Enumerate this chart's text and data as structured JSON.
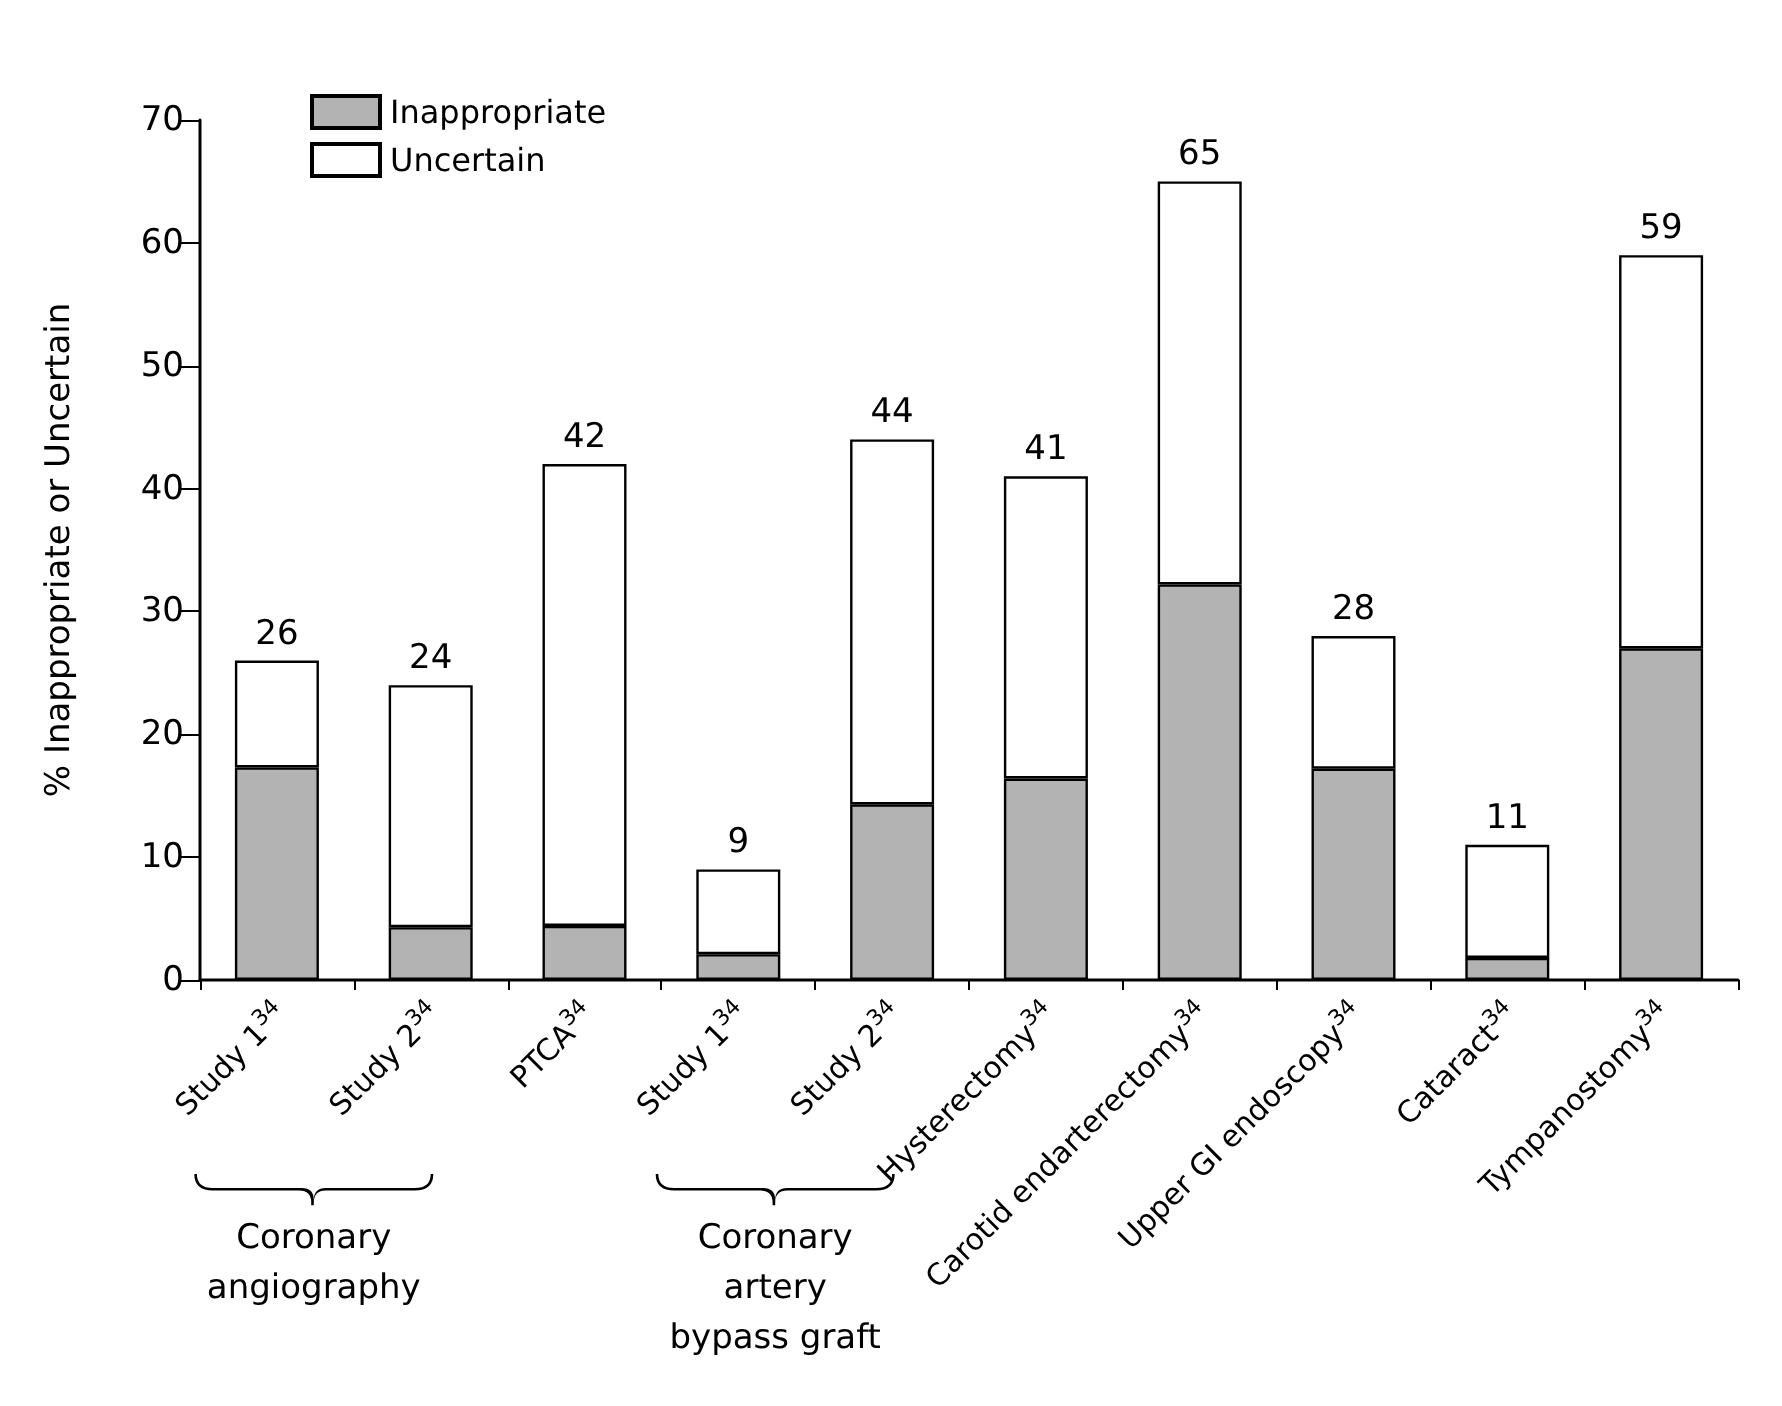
{
  "chart_data": {
    "type": "bar",
    "stacked": true,
    "ylabel": "% Inappropriate or Uncertain",
    "categories": [
      "Study 1$^{34}$",
      "Study 2$^{34}$",
      "PTCA$^{34}$",
      "Study 1$^{34}$",
      "Study 2$^{34}$",
      "Hysterectomy$^{34}$",
      "Carotid endarterectomy$^{34}$",
      "Upper GI endoscopy$^{34}$",
      "Cataract$^{34}$",
      "Tympanostomy$^{34}$"
    ],
    "series": [
      {
        "name": "Inappropriate",
        "color": "#b3b3b3",
        "values": [
          17.3,
          4.3,
          4.4,
          2.1,
          14.3,
          16.4,
          32.2,
          17.2,
          1.8,
          27
        ]
      },
      {
        "name": "Uncertain",
        "color": "#ffffff",
        "values": [
          8.7,
          19.7,
          37.6,
          6.9,
          29.7,
          24.6,
          32.8,
          10.8,
          9.2,
          32
        ]
      }
    ],
    "totals": [
      "26",
      "24",
      "42",
      "9",
      "44",
      "41",
      "65",
      "28",
      "11",
      "59"
    ],
    "ylim": [
      0,
      70
    ],
    "yticks": [
      0,
      10,
      20,
      30,
      40,
      50,
      60,
      70
    ],
    "legend": "top left",
    "grid": false,
    "annotations": [
      "Coronary\nangiography",
      "Coronary\nartery\nbypass graft"
    ]
  }
}
